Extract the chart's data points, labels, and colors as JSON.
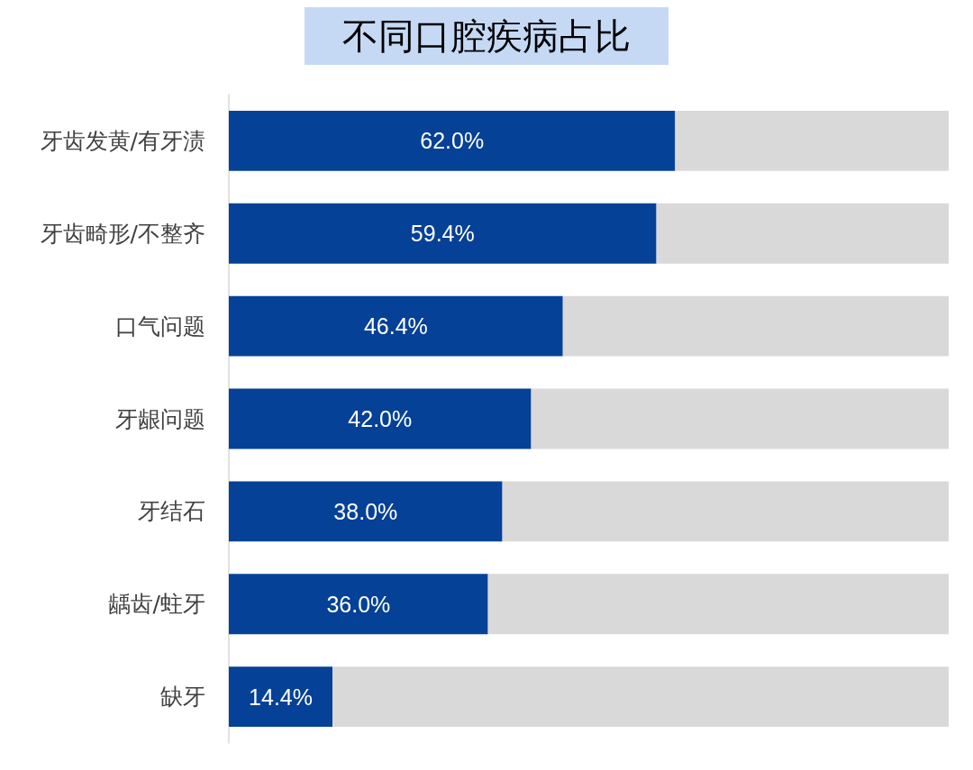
{
  "chart_data": {
    "type": "bar",
    "orientation": "horizontal",
    "title": "不同口腔疾病占比",
    "categories": [
      "牙齿发黄/有牙渍",
      "牙齿畸形/不整齐",
      "口气问题",
      "牙龈问题",
      "牙结石",
      "龋齿/蛀牙",
      "缺牙"
    ],
    "series": [
      {
        "color": "#054196",
        "values": [
          62.0,
          59.4,
          46.4,
          42.0,
          38.0,
          36.0,
          14.4
        ],
        "value_labels": [
          "62.0%",
          "59.4%",
          "46.4%",
          "42.0%",
          "38.0%",
          "36.0%",
          "14.4%"
        ]
      },
      {
        "color": "#d9d9d9",
        "values": [
          38.0,
          40.6,
          53.6,
          58.0,
          62.0,
          64.0,
          85.6
        ]
      }
    ],
    "stacked": true,
    "xlim": [
      0,
      100
    ],
    "tick_labels": "y",
    "grid": false
  }
}
